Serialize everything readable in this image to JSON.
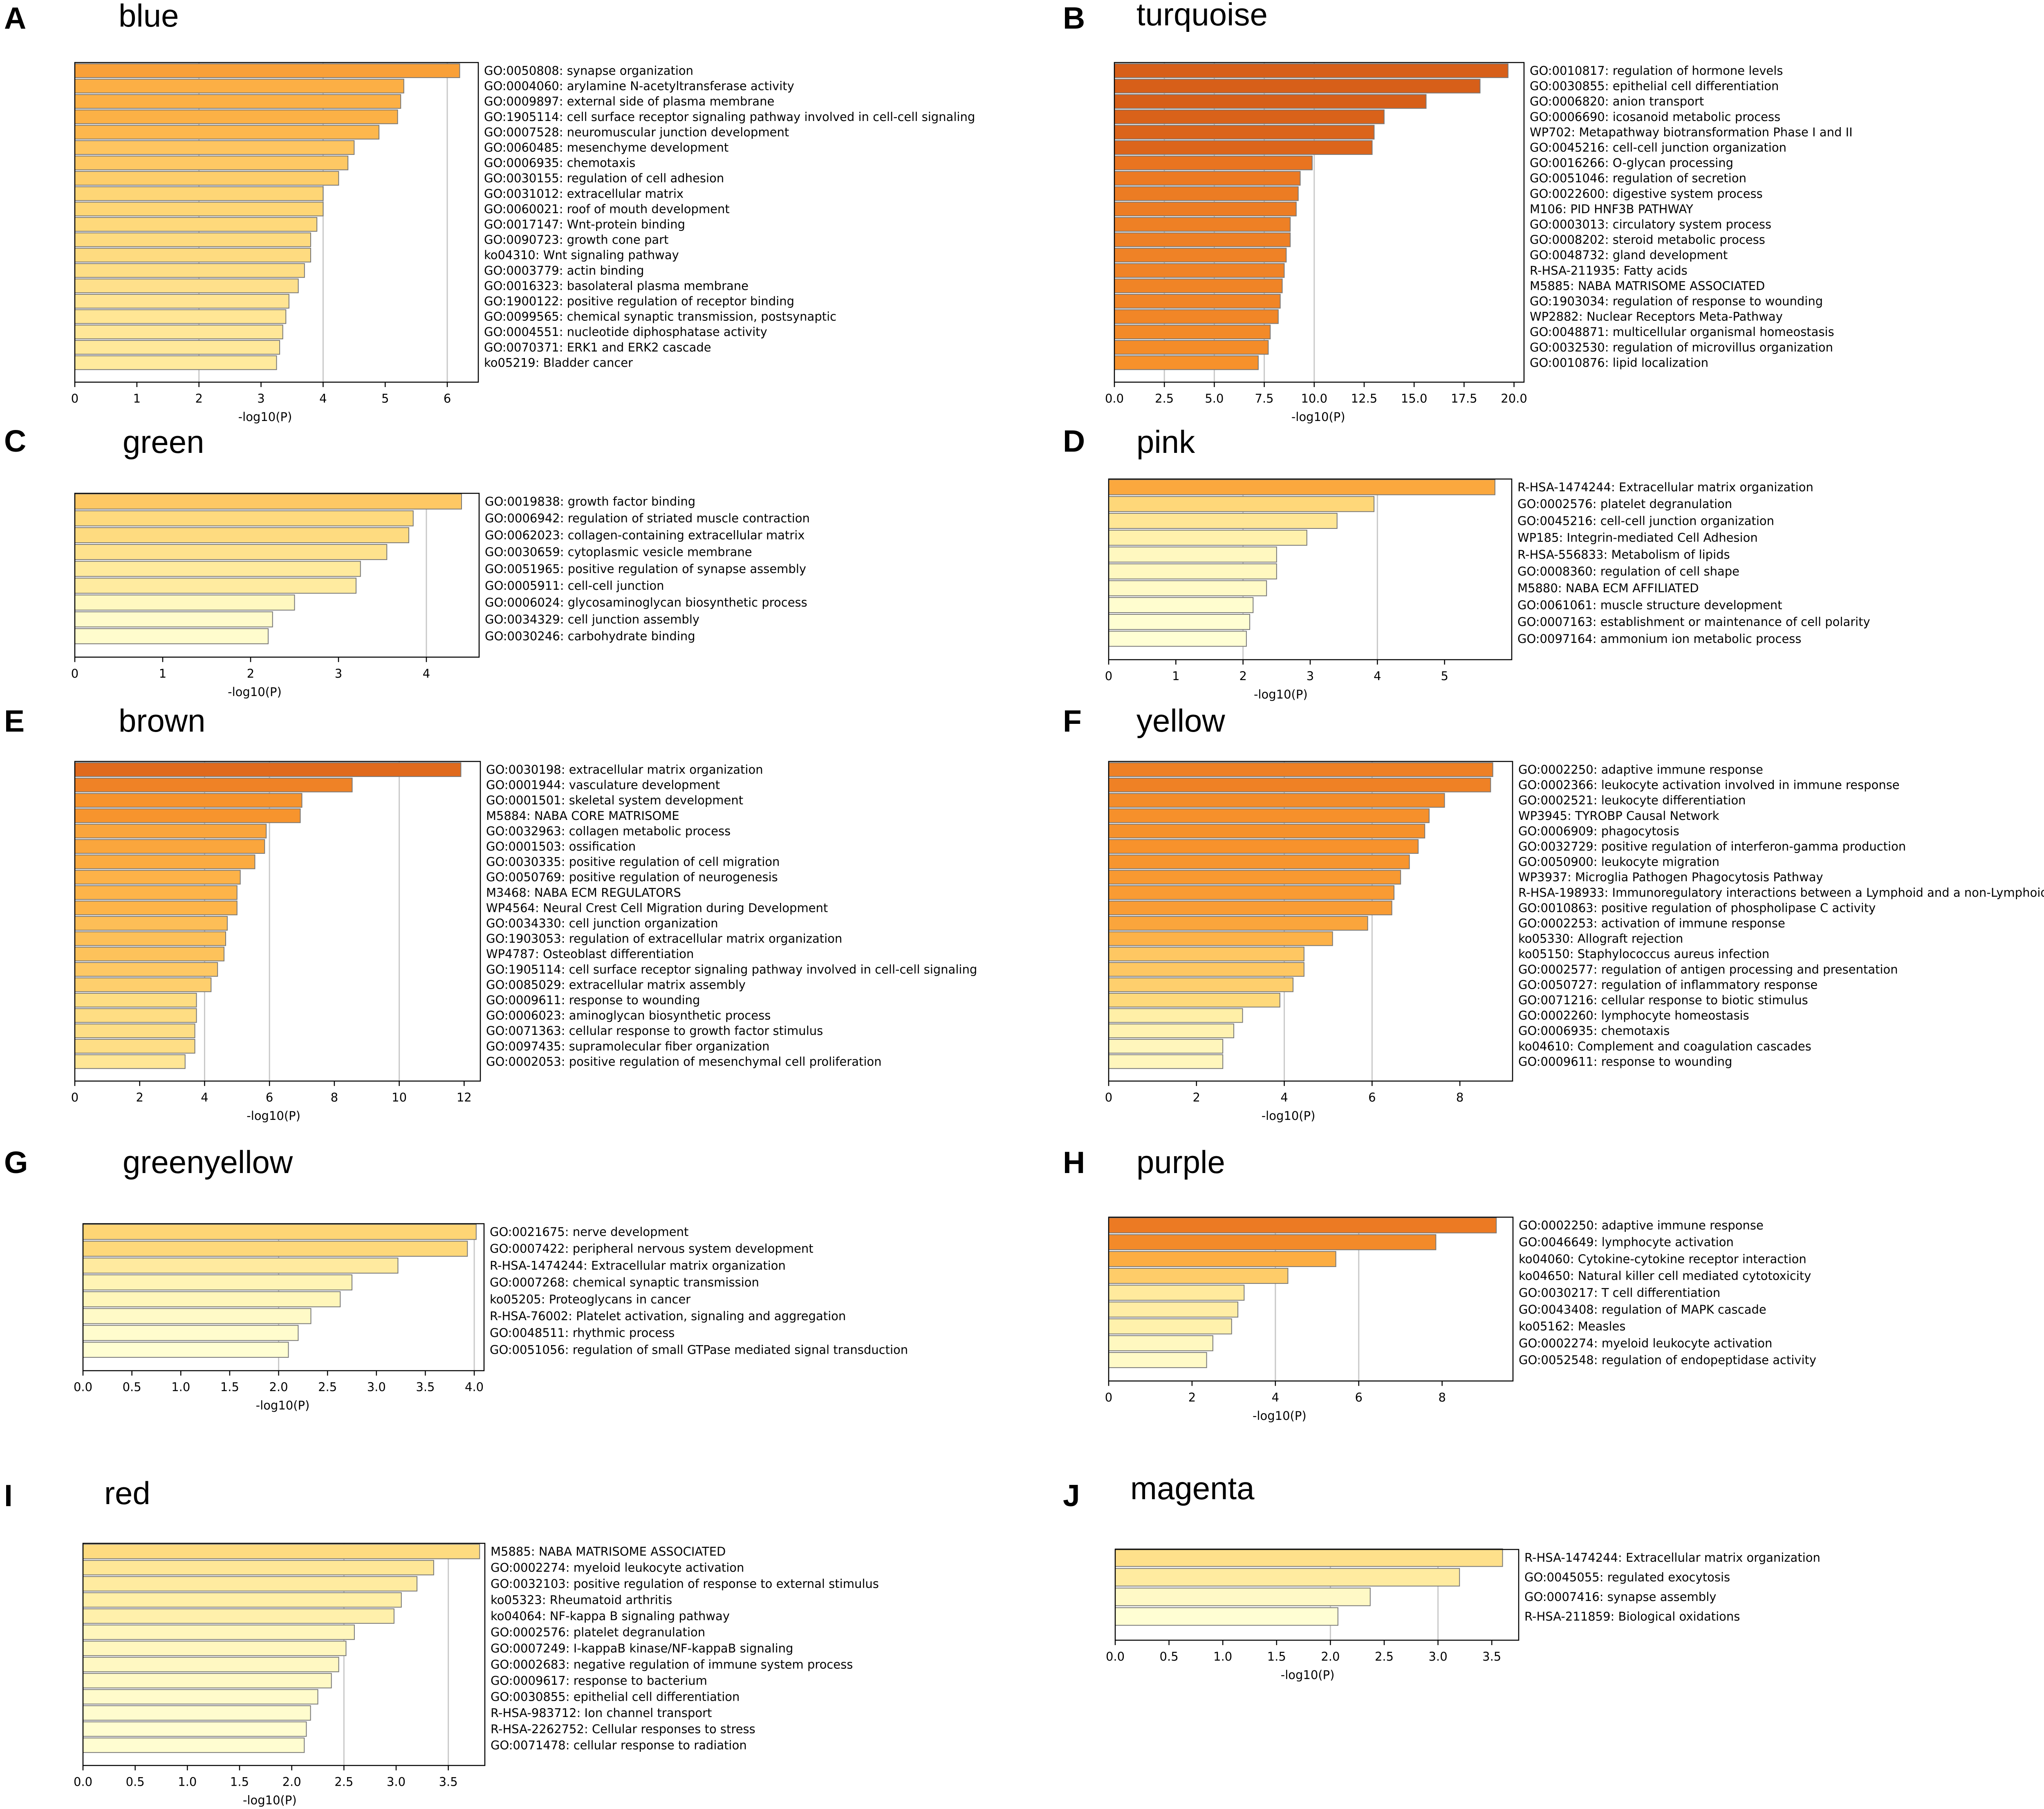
{
  "figure_labels": [
    "A",
    "B",
    "C",
    "D",
    "E",
    "F",
    "G",
    "H",
    "I",
    "J"
  ],
  "chart_data": [
    {
      "panel": "A",
      "title": "blue",
      "type": "bar",
      "orientation": "horizontal",
      "xlabel": "-log10(P)",
      "xlim": [
        0,
        6.5
      ],
      "xticks": [
        0,
        1,
        2,
        3,
        4,
        5,
        6
      ],
      "tick_labels": [
        "0",
        "1",
        "2",
        "3",
        "4",
        "5",
        "6"
      ],
      "gridlines": [
        2,
        4,
        6
      ],
      "categories": [
        "GO:0050808: synapse organization",
        "GO:0004060: arylamine N-acetyltransferase activity",
        "GO:0009897: external side of plasma membrane",
        "GO:1905114: cell surface receptor signaling pathway involved in cell-cell signaling",
        "GO:0007528: neuromuscular junction development",
        "GO:0060485: mesenchyme development",
        "GO:0006935: chemotaxis",
        "GO:0030155: regulation of cell adhesion",
        "GO:0031012: extracellular matrix",
        "GO:0060021: roof of mouth development",
        "GO:0017147: Wnt-protein binding",
        "GO:0090723: growth cone part",
        "ko04310: Wnt signaling pathway",
        "GO:0003779: actin binding",
        "GO:0016323: basolateral plasma membrane",
        "GO:1900122: positive regulation of receptor binding",
        "GO:0099565: chemical synaptic transmission, postsynaptic",
        "GO:0004551: nucleotide diphosphatase activity",
        "GO:0070371: ERK1 and ERK2 cascade",
        "ko05219: Bladder cancer"
      ],
      "values": [
        6.2,
        5.3,
        5.25,
        5.2,
        4.9,
        4.5,
        4.4,
        4.25,
        4.0,
        4.0,
        3.9,
        3.8,
        3.8,
        3.7,
        3.6,
        3.45,
        3.4,
        3.35,
        3.3,
        3.25
      ]
    },
    {
      "panel": "B",
      "title": "turquoise",
      "type": "bar",
      "orientation": "horizontal",
      "xlabel": "-log10(P)",
      "xlim": [
        0,
        20.5
      ],
      "xticks": [
        0,
        2.5,
        5,
        7.5,
        10,
        12.5,
        15,
        17.5,
        20
      ],
      "tick_labels": [
        "0.0",
        "2.5",
        "5.0",
        "7.5",
        "10.0",
        "12.5",
        "15.0",
        "17.5",
        "20.0"
      ],
      "gridlines": [
        2.5,
        5,
        7.5,
        10
      ],
      "categories": [
        "GO:0010817: regulation of hormone levels",
        "GO:0030855: epithelial cell differentiation",
        "GO:0006820: anion transport",
        "GO:0006690: icosanoid metabolic process",
        "WP702: Metapathway biotransformation Phase I and II",
        "GO:0045216: cell-cell junction organization",
        "GO:0016266: O-glycan processing",
        "GO:0051046: regulation of secretion",
        "GO:0022600: digestive system process",
        "M106: PID HNF3B PATHWAY",
        "GO:0003013: circulatory system process",
        "GO:0008202: steroid metabolic process",
        "GO:0048732: gland development",
        "R-HSA-211935: Fatty acids",
        "M5885: NABA MATRISOME ASSOCIATED",
        "GO:1903034: regulation of response to wounding",
        "WP2882: Nuclear Receptors Meta-Pathway",
        "GO:0048871: multicellular organismal homeostasis",
        "GO:0032530: regulation of microvillus organization",
        "GO:0010876: lipid localization"
      ],
      "values": [
        19.7,
        18.3,
        15.6,
        13.5,
        13.0,
        12.9,
        9.9,
        9.3,
        9.2,
        9.1,
        8.8,
        8.8,
        8.6,
        8.5,
        8.4,
        8.3,
        8.2,
        7.8,
        7.7,
        7.2
      ]
    },
    {
      "panel": "C",
      "title": "green",
      "type": "bar",
      "orientation": "horizontal",
      "xlabel": "-log10(P)",
      "xlim": [
        0,
        4.6
      ],
      "xticks": [
        0,
        1,
        2,
        3,
        4
      ],
      "tick_labels": [
        "0",
        "1",
        "2",
        "3",
        "4"
      ],
      "gridlines": [
        4
      ],
      "categories": [
        "GO:0019838: growth factor binding",
        "GO:0006942: regulation of striated muscle contraction",
        "GO:0062023: collagen-containing extracellular matrix",
        "GO:0030659: cytoplasmic vesicle membrane",
        "GO:0051965: positive regulation of synapse assembly",
        "GO:0005911: cell-cell junction",
        "GO:0006024: glycosaminoglycan biosynthetic process",
        "GO:0034329: cell junction assembly",
        "GO:0030246: carbohydrate binding"
      ],
      "values": [
        4.4,
        3.85,
        3.8,
        3.55,
        3.25,
        3.2,
        2.5,
        2.25,
        2.2
      ]
    },
    {
      "panel": "D",
      "title": "pink",
      "type": "bar",
      "orientation": "horizontal",
      "xlabel": "-log10(P)",
      "xlim": [
        0,
        6.0
      ],
      "xticks": [
        0,
        1,
        2,
        3,
        4,
        5
      ],
      "tick_labels": [
        "0",
        "1",
        "2",
        "3",
        "4",
        "5"
      ],
      "gridlines": [
        2,
        4
      ],
      "categories": [
        "R-HSA-1474244: Extracellular matrix organization",
        "GO:0002576: platelet degranulation",
        "GO:0045216: cell-cell junction organization",
        "WP185: Integrin-mediated Cell Adhesion",
        "R-HSA-556833: Metabolism of lipids",
        "GO:0008360: regulation of cell shape",
        "M5880: NABA ECM AFFILIATED",
        "GO:0061061: muscle structure development",
        "GO:0007163: establishment or maintenance of cell polarity",
        "GO:0097164: ammonium ion metabolic process"
      ],
      "values": [
        5.75,
        3.95,
        3.4,
        2.95,
        2.5,
        2.5,
        2.35,
        2.15,
        2.1,
        2.05
      ]
    },
    {
      "panel": "E",
      "title": "brown",
      "type": "bar",
      "orientation": "horizontal",
      "xlabel": "-log10(P)",
      "xlim": [
        0,
        12.5
      ],
      "xticks": [
        0,
        2,
        4,
        6,
        8,
        10,
        12
      ],
      "tick_labels": [
        "0",
        "2",
        "4",
        "6",
        "8",
        "10",
        "12"
      ],
      "gridlines": [
        4,
        6,
        10
      ],
      "categories": [
        "GO:0030198: extracellular matrix organization",
        "GO:0001944: vasculature development",
        "GO:0001501: skeletal system development",
        "M5884: NABA CORE MATRISOME",
        "GO:0032963: collagen metabolic process",
        "GO:0001503: ossification",
        "GO:0030335: positive regulation of cell migration",
        "GO:0050769: positive regulation of neurogenesis",
        "M3468: NABA ECM REGULATORS",
        "WP4564: Neural Crest Cell Migration during Development",
        "GO:0034330: cell junction organization",
        "GO:1903053: regulation of extracellular matrix organization",
        "WP4787: Osteoblast differentiation",
        "GO:1905114: cell surface receptor signaling pathway involved in cell-cell signaling",
        "GO:0085029: extracellular matrix assembly",
        "GO:0009611: response to wounding",
        "GO:0006023: aminoglycan biosynthetic process",
        "GO:0071363: cellular response to growth factor stimulus",
        "GO:0097435: supramolecular fiber organization",
        "GO:0002053: positive regulation of mesenchymal cell proliferation"
      ],
      "values": [
        11.9,
        8.55,
        7.0,
        6.95,
        5.9,
        5.85,
        5.55,
        5.1,
        5.0,
        5.0,
        4.7,
        4.65,
        4.6,
        4.4,
        4.2,
        3.75,
        3.75,
        3.7,
        3.7,
        3.4
      ]
    },
    {
      "panel": "F",
      "title": "yellow",
      "type": "bar",
      "orientation": "horizontal",
      "xlabel": "-log10(P)",
      "xlim": [
        0,
        9.2
      ],
      "xticks": [
        0,
        2,
        4,
        6,
        8
      ],
      "tick_labels": [
        "0",
        "2",
        "4",
        "6",
        "8"
      ],
      "gridlines": [
        4,
        6
      ],
      "categories": [
        "GO:0002250: adaptive immune response",
        "GO:0002366: leukocyte activation involved in immune response",
        "GO:0002521: leukocyte differentiation",
        "WP3945: TYROBP Causal Network",
        "GO:0006909: phagocytosis",
        "GO:0032729: positive regulation of interferon-gamma production",
        "GO:0050900: leukocyte migration",
        "WP3937: Microglia Pathogen Phagocytosis Pathway",
        "R-HSA-198933: Immunoregulatory interactions between a Lymphoid and a non-Lymphoid cell",
        "GO:0010863: positive regulation of phospholipase C activity",
        "GO:0002253: activation of immune response",
        "ko05330: Allograft rejection",
        "ko05150: Staphylococcus aureus infection",
        "GO:0002577: regulation of antigen processing and presentation",
        "GO:0050727: regulation of inflammatory response",
        "GO:0071216: cellular response to biotic stimulus",
        "GO:0002260: lymphocyte homeostasis",
        "GO:0006935: chemotaxis",
        "ko04610: Complement and coagulation cascades",
        "GO:0009611: response to wounding"
      ],
      "values": [
        8.75,
        8.7,
        7.65,
        7.3,
        7.2,
        7.05,
        6.85,
        6.65,
        6.5,
        6.45,
        5.9,
        5.1,
        4.45,
        4.45,
        4.2,
        3.9,
        3.05,
        2.85,
        2.6,
        2.6
      ]
    },
    {
      "panel": "G",
      "title": "greenyellow",
      "type": "bar",
      "orientation": "horizontal",
      "xlabel": "-log10(P)",
      "xlim": [
        0,
        4.1
      ],
      "xticks": [
        0,
        0.5,
        1,
        1.5,
        2,
        2.5,
        3,
        3.5,
        4
      ],
      "tick_labels": [
        "0.0",
        "0.5",
        "1.0",
        "1.5",
        "2.0",
        "2.5",
        "3.0",
        "3.5",
        "4.0"
      ],
      "gridlines": [
        2,
        4
      ],
      "categories": [
        "GO:0021675: nerve development",
        "GO:0007422: peripheral nervous system development",
        "R-HSA-1474244: Extracellular matrix organization",
        "GO:0007268: chemical synaptic transmission",
        "ko05205: Proteoglycans in cancer",
        "R-HSA-76002: Platelet activation, signaling and aggregation",
        "GO:0048511: rhythmic process",
        "GO:0051056: regulation of small GTPase mediated signal transduction"
      ],
      "values": [
        4.02,
        3.93,
        3.22,
        2.75,
        2.63,
        2.33,
        2.2,
        2.1
      ]
    },
    {
      "panel": "H",
      "title": "purple",
      "type": "bar",
      "orientation": "horizontal",
      "xlabel": "-log10(P)",
      "xlim": [
        0,
        9.7
      ],
      "xticks": [
        0,
        2,
        4,
        6,
        8
      ],
      "tick_labels": [
        "0",
        "2",
        "4",
        "6",
        "8"
      ],
      "gridlines": [
        4,
        6
      ],
      "categories": [
        "GO:0002250: adaptive immune response",
        "GO:0046649: lymphocyte activation",
        "ko04060: Cytokine-cytokine receptor interaction",
        "ko04650: Natural killer cell mediated cytotoxicity",
        "GO:0030217: T cell differentiation",
        "GO:0043408: regulation of MAPK cascade",
        "ko05162: Measles",
        "GO:0002274: myeloid leukocyte activation",
        "GO:0052548: regulation of endopeptidase activity"
      ],
      "values": [
        9.3,
        7.85,
        5.45,
        4.3,
        3.25,
        3.1,
        2.95,
        2.5,
        2.35
      ]
    },
    {
      "panel": "I",
      "title": "red",
      "type": "bar",
      "orientation": "horizontal",
      "xlabel": "-log10(P)",
      "xlim": [
        0,
        3.85
      ],
      "xticks": [
        0,
        0.5,
        1,
        1.5,
        2,
        2.5,
        3,
        3.5
      ],
      "tick_labels": [
        "0.0",
        "0.5",
        "1.0",
        "1.5",
        "2.0",
        "2.5",
        "3.0",
        "3.5"
      ],
      "gridlines": [
        2.5,
        3.5
      ],
      "categories": [
        "M5885: NABA MATRISOME ASSOCIATED",
        "GO:0002274: myeloid leukocyte activation",
        "GO:0032103: positive regulation of response to external stimulus",
        "ko05323: Rheumatoid arthritis",
        "ko04064: NF-kappa B signaling pathway",
        "GO:0002576: platelet degranulation",
        "GO:0007249: I-kappaB kinase/NF-kappaB signaling",
        "GO:0002683: negative regulation of immune system process",
        "GO:0009617: response to bacterium",
        "GO:0030855: epithelial cell differentiation",
        "R-HSA-983712: Ion channel transport",
        "R-HSA-2262752: Cellular responses to stress",
        "GO:0071478: cellular response to radiation"
      ],
      "values": [
        3.8,
        3.36,
        3.2,
        3.05,
        2.98,
        2.6,
        2.52,
        2.45,
        2.38,
        2.25,
        2.18,
        2.14,
        2.12
      ]
    },
    {
      "panel": "J",
      "title": "magenta",
      "type": "bar",
      "orientation": "horizontal",
      "xlabel": "-log10(P)",
      "xlim": [
        0,
        3.75
      ],
      "xticks": [
        0,
        0.5,
        1,
        1.5,
        2,
        2.5,
        3,
        3.5
      ],
      "tick_labels": [
        "0.0",
        "0.5",
        "1.0",
        "1.5",
        "2.0",
        "2.5",
        "3.0",
        "3.5"
      ],
      "gridlines": [
        2,
        3
      ],
      "categories": [
        "R-HSA-1474244: Extracellular matrix organization",
        "GO:0045055: regulated exocytosis",
        "GO:0007416: synapse assembly",
        "R-HSA-211859: Biological oxidations"
      ],
      "values": [
        3.6,
        3.2,
        2.37,
        2.07
      ]
    }
  ]
}
